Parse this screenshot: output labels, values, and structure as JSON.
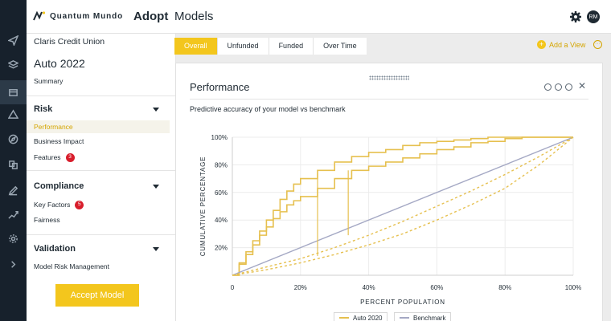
{
  "header": {
    "logo_text": "Quantum Mundo",
    "app_name": "Adopt",
    "page_name": "Models",
    "avatar_initials": "RM"
  },
  "rail": {
    "icons": [
      "send-icon",
      "layers-icon",
      "models-icon",
      "triangle-icon",
      "compass-icon",
      "documents-icon",
      "pen-icon",
      "trend-icon",
      "settings-icon",
      "expand-icon"
    ],
    "active_index": 2
  },
  "side": {
    "org": "Claris Credit Union",
    "model_title": "Auto 2022",
    "summary": "Summary",
    "sections": [
      {
        "title": "Risk",
        "items": [
          {
            "label": "Performance",
            "badge": null,
            "active": true
          },
          {
            "label": "Business Impact",
            "badge": null,
            "active": false
          },
          {
            "label": "Features",
            "badge": "3",
            "active": false
          }
        ]
      },
      {
        "title": "Compliance",
        "items": [
          {
            "label": "Key Factors",
            "badge": "5",
            "active": false
          },
          {
            "label": "Fairness",
            "badge": null,
            "active": false
          }
        ]
      },
      {
        "title": "Validation",
        "items": [
          {
            "label": "Model Risk Management",
            "badge": null,
            "active": false
          }
        ]
      }
    ],
    "accept_button": "Accept Model"
  },
  "tabs": [
    "Overall",
    "Unfunded",
    "Funded",
    "Over Time"
  ],
  "active_tab": 0,
  "add_view_label": "Add a View",
  "card": {
    "title": "Performance",
    "description": "Predictive accuracy of your model vs benchmark"
  },
  "colors": {
    "accent": "#f3c61d",
    "accent_text": "#d4a500",
    "model_curve": "#e6c04f",
    "benchmark_curve": "#a4a8c4",
    "rail_bg": "#17212c",
    "badge": "#d81e2c"
  },
  "chart_data": {
    "type": "line",
    "xlabel": "PERCENT POPULATION",
    "ylabel": "CUMULATIVE PERCENTAGE",
    "xlim": [
      0,
      100
    ],
    "ylim": [
      0,
      100
    ],
    "xticks": [
      "0",
      "20%",
      "40%",
      "60%",
      "80%",
      "100%"
    ],
    "yticks": [
      "20%",
      "40%",
      "60%",
      "80%",
      "100%"
    ],
    "grid": true,
    "legend_position": "bottom-center",
    "series": [
      {
        "name": "Auto 2020",
        "style": "step",
        "x": [
          0,
          2,
          4,
          6,
          8,
          10,
          12,
          14,
          16,
          18,
          20,
          25,
          30,
          35,
          40,
          45,
          50,
          55,
          60,
          65,
          70,
          75,
          80,
          85,
          90,
          95,
          100
        ],
        "y": [
          0,
          8,
          15,
          22,
          29,
          35,
          41,
          46,
          51,
          54,
          57,
          63,
          70,
          76,
          79,
          82,
          85,
          88,
          91,
          93,
          96,
          97,
          99,
          100,
          100,
          100,
          100
        ]
      },
      {
        "name": "Auto 2020 (upper)",
        "style": "step",
        "x": [
          0,
          2,
          4,
          6,
          8,
          10,
          12,
          14,
          16,
          18,
          20,
          25,
          30,
          35,
          40,
          45,
          50,
          55,
          60,
          65,
          70,
          75,
          80,
          85,
          90,
          95,
          100
        ],
        "y": [
          0,
          9,
          17,
          25,
          32,
          40,
          47,
          55,
          61,
          66,
          70,
          76,
          82,
          86,
          89,
          91,
          94,
          96,
          97,
          98,
          99,
          100,
          100,
          100,
          100,
          100,
          100
        ]
      },
      {
        "name": "Benchmark",
        "style": "line",
        "x": [
          0,
          100
        ],
        "y": [
          0,
          100
        ]
      },
      {
        "name": "Auto 2020 (dashed)",
        "style": "dashed",
        "x": [
          0,
          10,
          20,
          30,
          40,
          50,
          60,
          70,
          80,
          90,
          100
        ],
        "y": [
          0,
          6,
          12,
          20,
          29,
          39,
          50,
          61,
          73,
          86,
          100
        ]
      },
      {
        "name": "Benchmark (dashed)",
        "style": "dashed",
        "x": [
          0,
          10,
          20,
          30,
          40,
          50,
          60,
          70,
          80,
          90,
          100
        ],
        "y": [
          0,
          4,
          9,
          15,
          22,
          30,
          40,
          51,
          63,
          80,
          100
        ]
      }
    ],
    "reference_lines": [
      {
        "x": 25,
        "y_from": 14,
        "y_to": 74
      },
      {
        "x": 34,
        "y_from": 29,
        "y_to": 76
      }
    ],
    "legend": [
      "Auto 2020",
      "Benchmark"
    ]
  }
}
